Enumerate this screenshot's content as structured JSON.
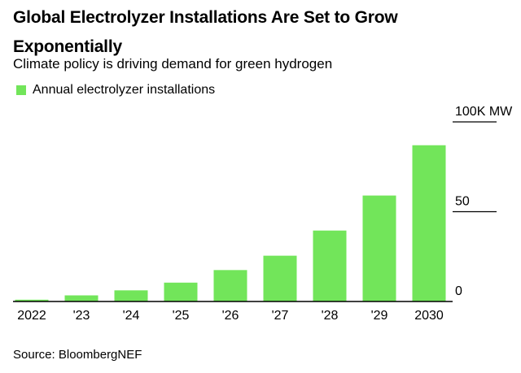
{
  "title": "Global Electrolyzer Installations Are Set to Grow Exponentially",
  "subtitle": "Climate policy is driving demand for green hydrogen",
  "source": "Source: BloombergNEF",
  "colors": {
    "bar": "#72e55a",
    "axis": "#000000",
    "text": "#000000"
  },
  "chart_data": {
    "type": "bar",
    "title": "Global Electrolyzer Installations Are Set to Grow Exponentially",
    "subtitle": "Climate policy is driving demand for green hydrogen",
    "categories": [
      "2022",
      "'23",
      "'24",
      "'25",
      "'26",
      "'27",
      "'28",
      "'29",
      "2030"
    ],
    "series": [
      {
        "name": "Annual electrolyzer installations",
        "values": [
          1,
          3.4,
          6.2,
          10.5,
          17.5,
          25.5,
          39.5,
          59,
          87
        ]
      }
    ],
    "y_ticks": [
      {
        "value": 100,
        "label": "100K MW"
      },
      {
        "value": 50,
        "label": "50"
      },
      {
        "value": 0,
        "label": "0"
      }
    ],
    "ylim": [
      0,
      100
    ],
    "y_axis_side": "right",
    "legend_position": "top-left",
    "grid": false
  }
}
